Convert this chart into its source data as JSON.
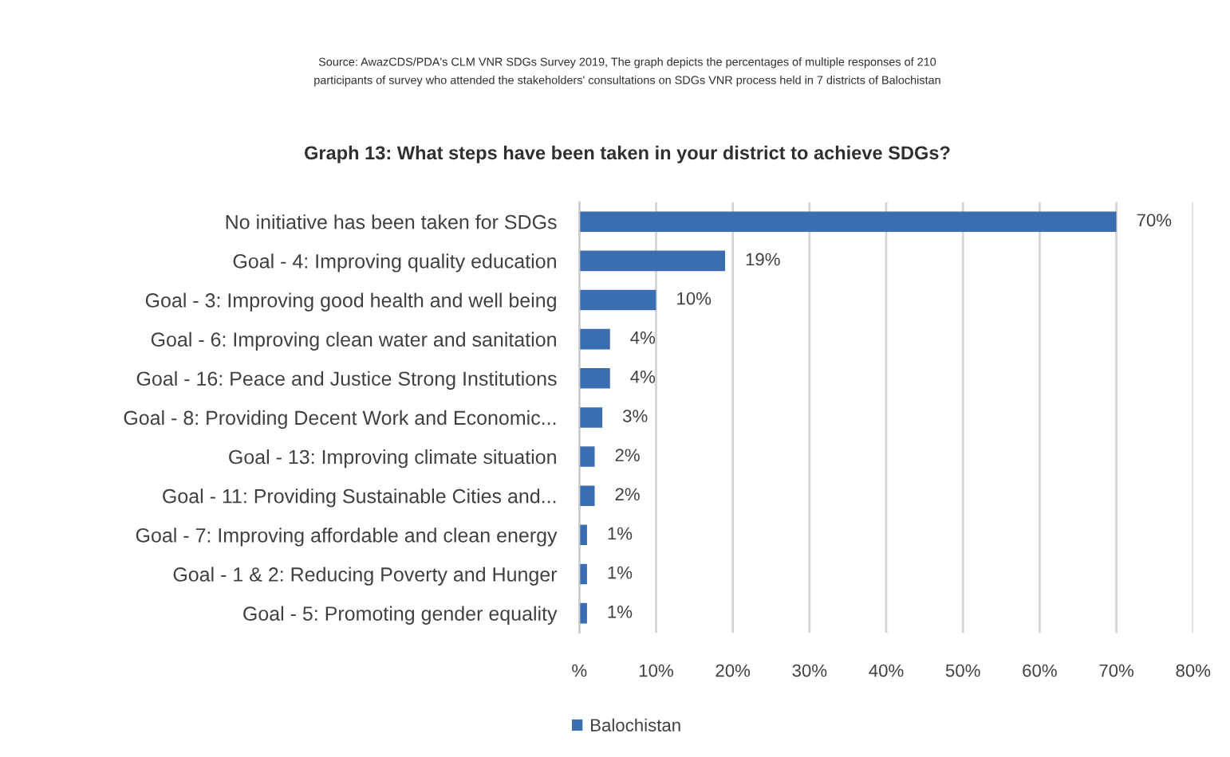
{
  "chart_data": {
    "type": "bar",
    "orientation": "horizontal",
    "title": "Graph 13: What steps have been taken in your district to achieve SDGs?",
    "annotations": [
      "Source: AwazCDS/PDA's CLM VNR SDGs Survey 2019, The graph depicts the percentages of multiple responses of 210\nparticipants of survey who attended the stakeholders' consultations on SDGs VNR process held in 7 districts of Balochistan"
    ],
    "categories": [
      "No initiative has been taken for SDGs",
      "Goal - 4: Improving quality education",
      "Goal - 3: Improving good health and well being",
      "Goal - 6: Improving clean water and sanitation",
      "Goal - 16: Peace and Justice Strong Institutions",
      "Goal - 8: Providing Decent Work and Economic...",
      "Goal - 13: Improving climate situation",
      "Goal - 11: Providing Sustainable Cities and...",
      "Goal - 7: Improving affordable and clean energy",
      "Goal - 1 & 2: Reducing Poverty and Hunger",
      "Goal - 5: Promoting gender equality"
    ],
    "series": [
      {
        "name": "Balochistan",
        "color": "#3b6eb0",
        "values": [
          70,
          19,
          10,
          4,
          4,
          3,
          2,
          2,
          1,
          1,
          1
        ],
        "value_labels": [
          "70%",
          "19%",
          "10%",
          "4%",
          "4%",
          "3%",
          "2%",
          "2%",
          "1%",
          "1%",
          "1%"
        ]
      }
    ],
    "xlim": [
      0,
      80
    ],
    "xticks": [
      {
        "value": 0,
        "label": "%"
      },
      {
        "value": 10,
        "label": "10%"
      },
      {
        "value": 20,
        "label": "20%"
      },
      {
        "value": 30,
        "label": "30%"
      },
      {
        "value": 40,
        "label": "40%"
      },
      {
        "value": 50,
        "label": "50%"
      },
      {
        "value": 60,
        "label": "60%"
      },
      {
        "value": 70,
        "label": "70%"
      },
      {
        "value": 80,
        "label": "80%"
      }
    ],
    "grid": "x",
    "legend": "bottom"
  }
}
